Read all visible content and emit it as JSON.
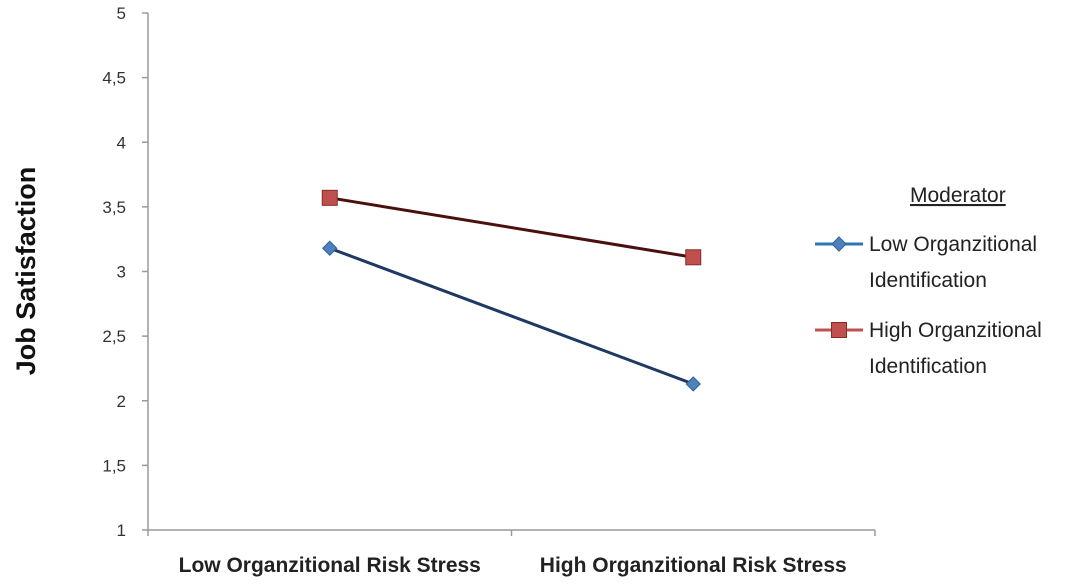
{
  "chart_data": {
    "type": "line",
    "categories": [
      "Low Organzitional Risk Stress",
      "High Organzitional Risk Stress"
    ],
    "ylabel": "Job Satisfaction",
    "xlabel": "",
    "ylim": [
      1,
      5
    ],
    "yticks": [
      {
        "value": 1,
        "label": "1"
      },
      {
        "value": 1.5,
        "label": "1,5"
      },
      {
        "value": 2,
        "label": "2"
      },
      {
        "value": 2.5,
        "label": "2,5"
      },
      {
        "value": 3,
        "label": "3"
      },
      {
        "value": 3.5,
        "label": "3,5"
      },
      {
        "value": 4,
        "label": "4"
      },
      {
        "value": 4.5,
        "label": "4,5"
      },
      {
        "value": 5,
        "label": "5"
      }
    ],
    "grid": false,
    "legend_position": "right",
    "legend": {
      "title": "Moderator",
      "entries": [
        {
          "line1": "Low Organzitional",
          "line2": "Identification"
        },
        {
          "line1": "High Organzitional",
          "line2": "Identification"
        }
      ]
    },
    "series": [
      {
        "values": [
          3.18,
          2.13
        ],
        "marker": "diamond",
        "line_color": "#1f3864",
        "marker_color": "#4f81bd",
        "legend_line_color": "#2e75b6"
      },
      {
        "values": [
          3.57,
          3.11
        ],
        "marker": "square",
        "line_color": "#4a1010",
        "marker_color": "#c0504d",
        "legend_line_color": "#c0504d"
      }
    ]
  }
}
